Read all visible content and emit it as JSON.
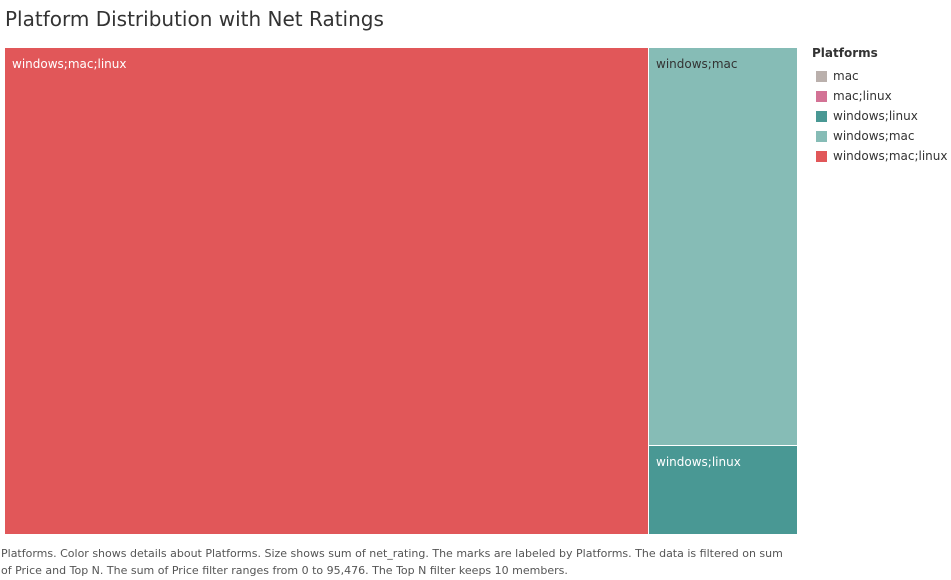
{
  "chart_data": {
    "type": "treemap",
    "title": "Platform Distribution with Net Ratings",
    "size_measure": "net_rating",
    "tiles": [
      {
        "label": "windows;mac;linux",
        "value": 81.2,
        "color": "#E15759",
        "label_color": "#ffffff"
      },
      {
        "label": "windows;mac",
        "value": 15.4,
        "color": "#86BCB6",
        "label_color": "#333333"
      },
      {
        "label": "windows;linux",
        "value": 3.4,
        "color": "#499894",
        "label_color": "#ffffff"
      }
    ],
    "legend": {
      "title": "Platforms",
      "position": "right",
      "items": [
        {
          "label": "mac",
          "color": "#BAB0AC"
        },
        {
          "label": "mac;linux",
          "color": "#D37295"
        },
        {
          "label": "windows;linux",
          "color": "#499894"
        },
        {
          "label": "windows;mac",
          "color": "#86BCB6"
        },
        {
          "label": "windows;mac;linux",
          "color": "#E15759"
        }
      ]
    },
    "caption": "Platforms.  Color shows details about Platforms.  Size shows sum of net_rating.  The marks are labeled by Platforms. The data is filtered on sum of Price and Top N. The sum of Price filter ranges from 0 to 95,476. The Top N filter keeps 10 members."
  }
}
